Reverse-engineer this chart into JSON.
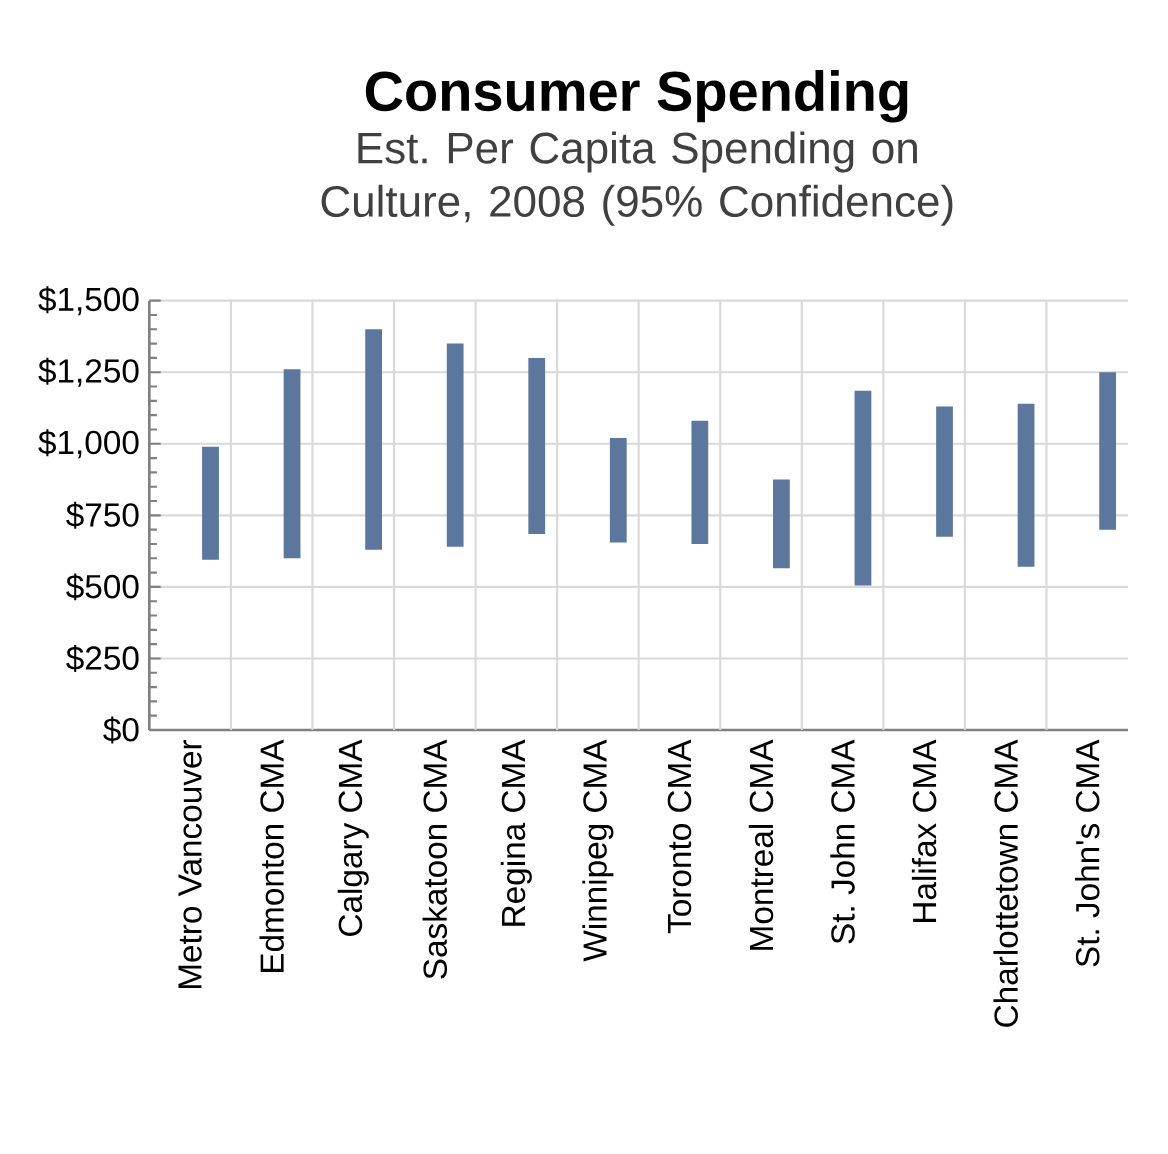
{
  "chart_data": {
    "type": "bar",
    "title": "Consumer Spending",
    "subtitle": "Est. Per Capita Spending on Culture, 2008 (95% Confidence)",
    "categories": [
      "Metro Vancouver",
      "Edmonton CMA",
      "Calgary CMA",
      "Saskatoon CMA",
      "Regina CMA",
      "Winnipeg CMA",
      "Toronto CMA",
      "Montreal CMA",
      "St. John CMA",
      "Halifax CMA",
      "Charlottetown CMA",
      "St. John's CMA"
    ],
    "base": [
      595,
      600,
      630,
      640,
      685,
      655,
      650,
      565,
      505,
      675,
      570,
      700
    ],
    "values": [
      395,
      660,
      770,
      710,
      615,
      365,
      430,
      310,
      680,
      455,
      570,
      550
    ],
    "color": "#5b779e",
    "ylim": [
      0,
      1500
    ],
    "yticks": [
      {
        "value": 0,
        "label": "$0"
      },
      {
        "value": 250,
        "label": "$250"
      },
      {
        "value": 500,
        "label": "$500"
      },
      {
        "value": 750,
        "label": "$750"
      },
      {
        "value": 1000,
        "label": "$1,000"
      },
      {
        "value": 1250,
        "label": "$1,250"
      },
      {
        "value": 1500,
        "label": "$1,500"
      }
    ],
    "grid": true
  }
}
